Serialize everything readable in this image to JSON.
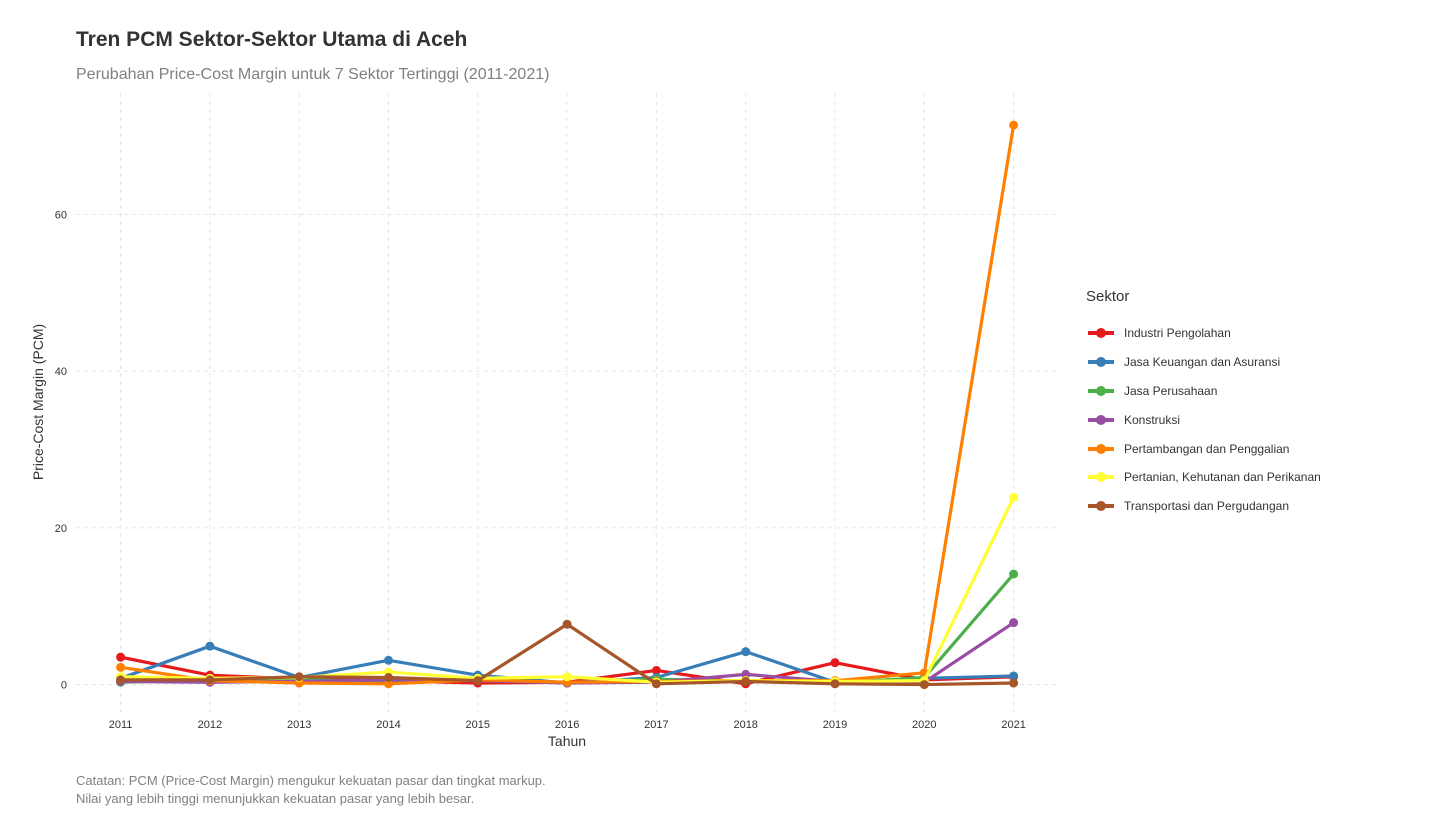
{
  "title": "Tren PCM Sektor-Sektor Utama di Aceh",
  "subtitle": "Perubahan Price-Cost Margin untuk 7 Sektor Tertinggi (2011-2021)",
  "caption": {
    "line1": "Catatan: PCM (Price-Cost Margin) mengukur kekuatan pasar dan tingkat markup.",
    "line2": "Nilai yang lebih tinggi menunjukkan kekuatan pasar yang lebih besar."
  },
  "legend": {
    "title": "Sektor"
  },
  "chart_data": {
    "type": "line",
    "xlabel": "Tahun",
    "ylabel": "Price-Cost Margin (PCM)",
    "x": [
      2011,
      2012,
      2013,
      2014,
      2015,
      2016,
      2017,
      2018,
      2019,
      2020,
      2021
    ],
    "yticks": [
      0,
      20,
      40,
      60
    ],
    "ylim": [
      -3.5,
      75.5
    ],
    "grid": true,
    "legend_position": "right",
    "series": [
      {
        "name": "Industri Pengolahan",
        "color": "#E41A1C",
        "values": [
          3.5,
          1.2,
          0.7,
          0.5,
          0.2,
          0.3,
          1.8,
          0.1,
          2.8,
          0.6,
          1.0
        ]
      },
      {
        "name": "Jasa Keuangan dan Asuransi",
        "color": "#377EB8",
        "values": [
          0.8,
          4.9,
          0.9,
          3.1,
          1.2,
          0.2,
          0.9,
          4.2,
          0.3,
          0.8,
          1.1
        ]
      },
      {
        "name": "Jasa Perusahaan",
        "color": "#4DAF4A",
        "values": [
          0.3,
          0.6,
          0.7,
          0.2,
          0.8,
          0.2,
          0.7,
          0.4,
          0.2,
          0.9,
          14.1
        ]
      },
      {
        "name": "Konstruksi",
        "color": "#984EA3",
        "values": [
          0.4,
          0.3,
          0.4,
          0.6,
          0.5,
          0.2,
          0.3,
          1.3,
          0.4,
          0.3,
          7.9
        ]
      },
      {
        "name": "Pertambangan dan Penggalian",
        "color": "#FF7F00",
        "values": [
          2.2,
          0.5,
          0.2,
          0.1,
          0.6,
          0.3,
          0.4,
          0.5,
          0.5,
          1.5,
          71.4
        ]
      },
      {
        "name": "Pertanian, Kehutanan dan Perikanan",
        "color": "#FFFF33",
        "values": [
          1.0,
          0.8,
          0.9,
          1.6,
          0.8,
          1.0,
          0.3,
          0.5,
          0.4,
          0.5,
          23.9
        ]
      },
      {
        "name": "Transportasi dan Pergudangan",
        "color": "#A65628",
        "values": [
          0.6,
          0.6,
          1.0,
          0.9,
          0.5,
          7.7,
          0.1,
          0.4,
          0.1,
          0.0,
          0.2
        ]
      }
    ]
  }
}
